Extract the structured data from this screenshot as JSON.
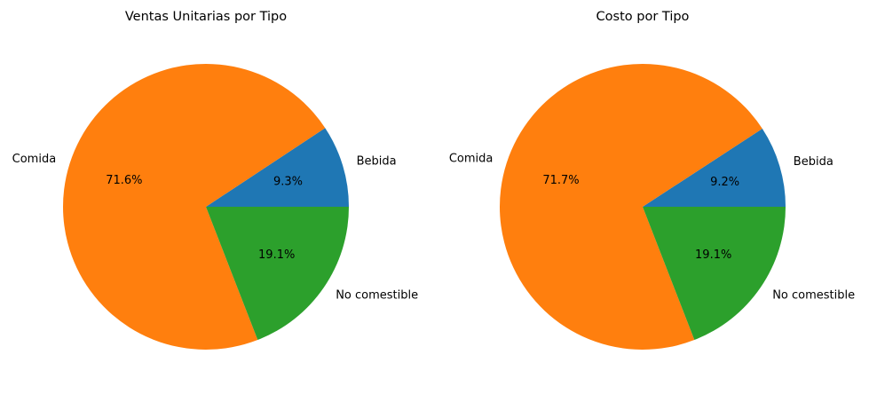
{
  "chart_data": [
    {
      "type": "pie",
      "title": "Ventas Unitarias por Tipo",
      "categories": [
        "Bebida",
        "Comida",
        "No comestible"
      ],
      "values": [
        9.3,
        71.6,
        19.1
      ],
      "value_labels": [
        "9.3%",
        "71.6%",
        "19.1%"
      ],
      "colors": [
        "#1f77b4",
        "#ff7f0e",
        "#2ca02c"
      ]
    },
    {
      "type": "pie",
      "title": "Costo por Tipo",
      "categories": [
        "Bebida",
        "Comida",
        "No comestible"
      ],
      "values": [
        9.2,
        71.7,
        19.1
      ],
      "value_labels": [
        "9.2%",
        "71.7%",
        "19.1%"
      ],
      "colors": [
        "#1f77b4",
        "#ff7f0e",
        "#2ca02c"
      ]
    }
  ]
}
